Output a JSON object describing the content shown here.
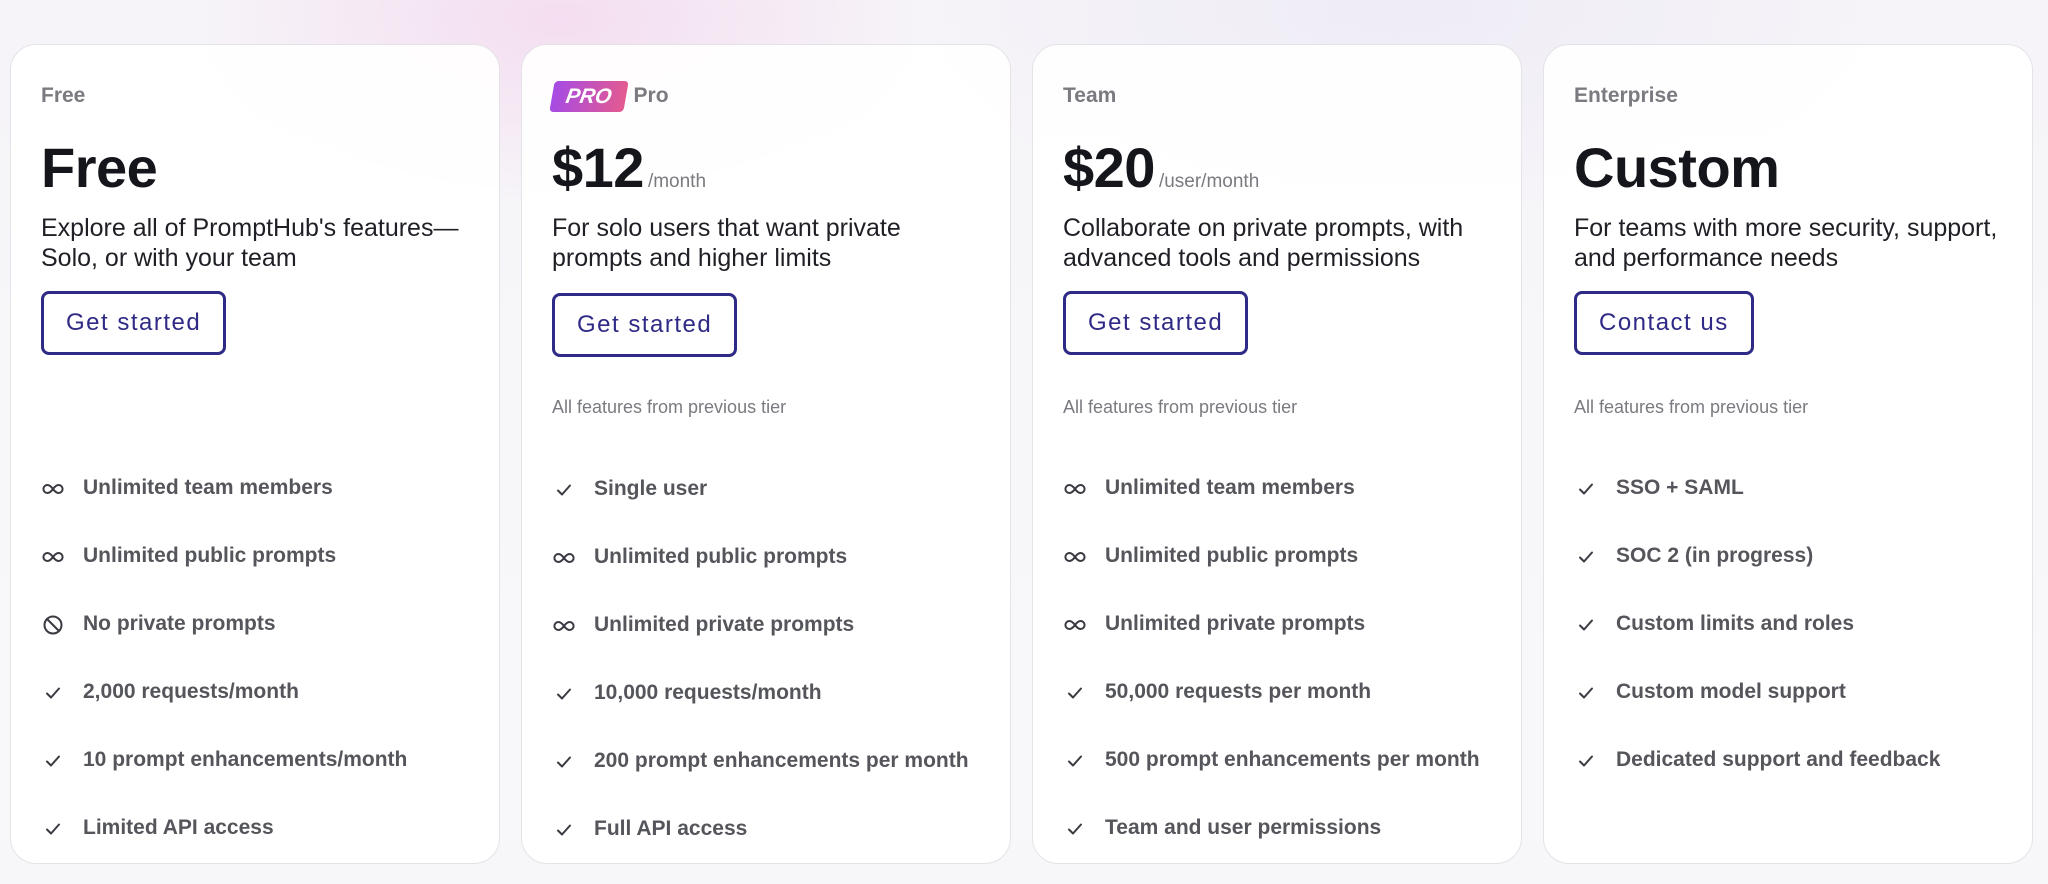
{
  "plans": [
    {
      "tier_label": "Free",
      "price": "Free",
      "price_unit": "",
      "description": "Explore all of PromptHub's features—Solo, or with your team",
      "cta_label": "Get started",
      "previous_tier_note": "",
      "features": [
        {
          "icon": "infinity-icon",
          "text": "Unlimited team members"
        },
        {
          "icon": "infinity-icon",
          "text": "Unlimited public prompts"
        },
        {
          "icon": "no-entry-icon",
          "text": "No private prompts"
        },
        {
          "icon": "check-icon",
          "text": "2,000 requests/month"
        },
        {
          "icon": "check-icon",
          "text": "10 prompt enhancements/month"
        },
        {
          "icon": "check-icon",
          "text": "Limited API access"
        }
      ]
    },
    {
      "badge": "PRO",
      "tier_label": "Pro",
      "price": "$12",
      "price_unit": "/month",
      "description": "For solo users that want private prompts and higher limits",
      "cta_label": "Get started",
      "previous_tier_note": "All features from previous tier",
      "features": [
        {
          "icon": "check-icon",
          "text": "Single user"
        },
        {
          "icon": "infinity-icon",
          "text": "Unlimited public prompts"
        },
        {
          "icon": "infinity-icon",
          "text": "Unlimited private prompts"
        },
        {
          "icon": "check-icon",
          "text": "10,000 requests/month"
        },
        {
          "icon": "check-icon",
          "text": "200 prompt enhancements per month"
        },
        {
          "icon": "check-icon",
          "text": "Full API access"
        }
      ]
    },
    {
      "tier_label": "Team",
      "price": "$20",
      "price_unit": "/user/month",
      "description": "Collaborate on private prompts, with advanced tools and permissions",
      "cta_label": "Get started",
      "previous_tier_note": "All features from previous tier",
      "features": [
        {
          "icon": "infinity-icon",
          "text": "Unlimited team members"
        },
        {
          "icon": "infinity-icon",
          "text": "Unlimited public prompts"
        },
        {
          "icon": "infinity-icon",
          "text": "Unlimited private prompts"
        },
        {
          "icon": "check-icon",
          "text": "50,000 requests per month"
        },
        {
          "icon": "check-icon",
          "text": "500 prompt enhancements per month"
        },
        {
          "icon": "check-icon",
          "text": "Team and user permissions"
        }
      ]
    },
    {
      "tier_label": "Enterprise",
      "price": "Custom",
      "price_unit": "",
      "description": "For teams with more security, support, and performance needs",
      "cta_label": "Contact us",
      "previous_tier_note": "All features from previous tier",
      "features": [
        {
          "icon": "check-icon",
          "text": "SSO + SAML"
        },
        {
          "icon": "check-icon",
          "text": "SOC 2 (in progress)"
        },
        {
          "icon": "check-icon",
          "text": "Custom limits and roles"
        },
        {
          "icon": "check-icon",
          "text": "Custom model support"
        },
        {
          "icon": "check-icon",
          "text": "Dedicated support and feedback"
        }
      ]
    }
  ],
  "colors": {
    "accent": "#2e2a86",
    "heading": "#15161c",
    "muted": "#7a7a80",
    "badge_from": "#a64be5",
    "badge_to": "#e35a8f"
  }
}
